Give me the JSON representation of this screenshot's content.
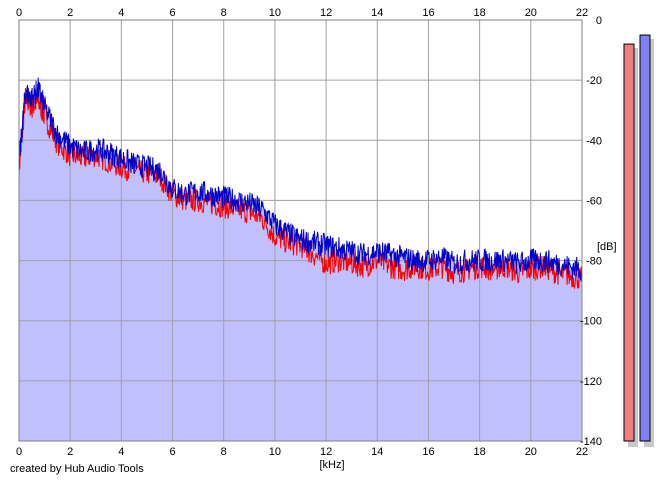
{
  "credit": "created by Hub Audio Tools",
  "colors": {
    "fill": "#c0c0ff",
    "left_channel": "#ff0000",
    "right_channel": "#0000cc",
    "grid": "#a0a0a0",
    "level_left": "#f08080",
    "level_right": "#8080f0"
  },
  "chart_data": {
    "type": "area",
    "xlabel": "[kHz]",
    "ylabel": "[dB]",
    "xlim": [
      0,
      22
    ],
    "ylim": [
      -140,
      0
    ],
    "x_ticks": [
      "0",
      "2",
      "4",
      "6",
      "8",
      "10",
      "12",
      "14",
      "16",
      "18",
      "20",
      "22"
    ],
    "y_ticks": [
      "0",
      "-20",
      "-40",
      "-60",
      "-80",
      "-100",
      "-120",
      "-140"
    ],
    "grid": true,
    "x": [
      0,
      0.25,
      0.5,
      0.75,
      1,
      1.5,
      2,
      2.5,
      3,
      3.5,
      4,
      4.5,
      5,
      5.5,
      6,
      6.5,
      7,
      7.5,
      8,
      8.5,
      9,
      9.5,
      10,
      10.5,
      11,
      11.5,
      12,
      12.5,
      13,
      13.5,
      14,
      14.5,
      15,
      15.5,
      16,
      16.5,
      17,
      17.5,
      18,
      18.5,
      19,
      19.5,
      20,
      20.5,
      21,
      21.5,
      22
    ],
    "series": [
      {
        "values": [
          -50,
          -26,
          -29,
          -27,
          -32,
          -41,
          -45,
          -46,
          -45,
          -47,
          -49,
          -50,
          -51,
          -52,
          -58,
          -60,
          -60,
          -61,
          -62,
          -63,
          -64,
          -66,
          -72,
          -74,
          -75,
          -78,
          -81,
          -80,
          -81,
          -82,
          -80,
          -82,
          -83,
          -82,
          -83,
          -82,
          -84,
          -83,
          -82,
          -83,
          -82,
          -84,
          -83,
          -82,
          -84,
          -85,
          -86
        ]
      },
      {
        "values": [
          -48,
          -24,
          -26,
          -23,
          -29,
          -38,
          -42,
          -44,
          -43,
          -44,
          -46,
          -48,
          -49,
          -50,
          -56,
          -58,
          -57,
          -58,
          -59,
          -60,
          -61,
          -63,
          -68,
          -71,
          -73,
          -74,
          -75,
          -76,
          -77,
          -78,
          -77,
          -78,
          -79,
          -80,
          -80,
          -79,
          -81,
          -80,
          -80,
          -80,
          -80,
          -81,
          -80,
          -80,
          -81,
          -82,
          -83
        ]
      }
    ],
    "level_meters": [
      {
        "channel": "left",
        "value_db": -8
      },
      {
        "channel": "right",
        "value_db": -5
      }
    ]
  }
}
